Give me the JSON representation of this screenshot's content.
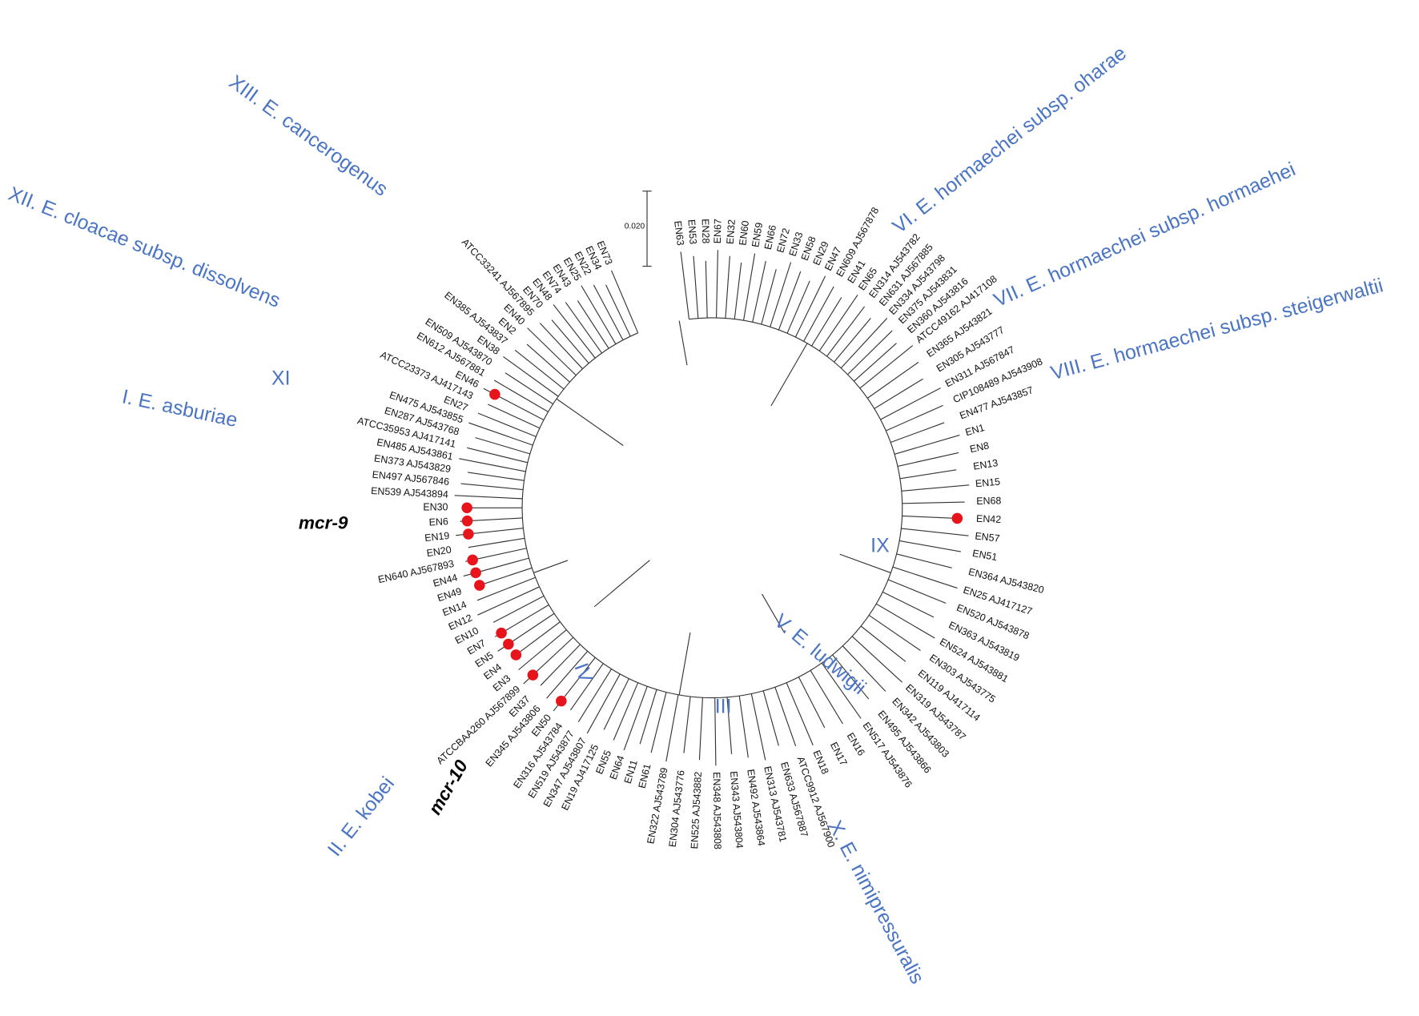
{
  "leaves": [
    "EN63",
    "EN53",
    "EN28",
    "EN67",
    "EN32",
    "EN60",
    "EN59",
    "EN66",
    "EN72",
    "EN33",
    "EN58",
    "EN29",
    "EN47",
    "EN609 AJ567878",
    "EN41",
    "EN65",
    "EN314 AJ543782",
    "EN631 AJ567885",
    "EN334 AJ543798",
    "EN375 AJ543831",
    "EN360 AJ543816",
    "ATCC49162 AJ417108",
    "EN365 AJ543821",
    "EN305 AJ543777",
    "EN311 AJ567847",
    "CIP108489 AJ543908",
    "EN477 AJ543857",
    "EN1",
    "EN8",
    "EN13",
    "EN15",
    "EN68",
    "EN42",
    "EN57",
    "EN51",
    "EN364 AJ543820",
    "EN25 AJ417127",
    "EN520 AJ543878",
    "EN363 AJ543819",
    "EN524 AJ543881",
    "EN303 AJ543775",
    "EN119 AJ417114",
    "EN319 AJ543787",
    "EN342 AJ543803",
    "EN495 AJ543866",
    "EN517 AJ543876",
    "EN16",
    "EN17",
    "EN18",
    "ATCC9912 AJ567900",
    "EN633 AJ567887",
    "EN313 AJ543781",
    "EN492 AJ543864",
    "EN343 AJ543804",
    "EN348 AJ543808",
    "EN525 AJ543882",
    "EN304 AJ543776",
    "EN322 AJ543789",
    "EN61",
    "EN11",
    "EN64",
    "EN55",
    "EN19 AJ417125",
    "EN347 AJ543807",
    "EN519 AJ543877",
    "EN316 AJ543784",
    "EN50",
    "EN345 AJ543806",
    "EN37",
    "ATCCBAA260 AJ567899",
    "EN3",
    "EN4",
    "EN5",
    "EN7",
    "EN10",
    "EN12",
    "EN14",
    "EN49",
    "EN44",
    "EN640 AJ567893",
    "EN20",
    "EN19",
    "EN6",
    "EN30",
    "EN539 AJ543894",
    "EN497 AJ567846",
    "EN373 AJ543829",
    "EN485 AJ543861",
    "ATCC35953 AJ417141",
    "EN287 AJ543768",
    "EN475 AJ543855",
    "EN27",
    "ATCC23373 AJ417143",
    "EN46",
    "EN612 AJ567881",
    "EN509 AJ543870",
    "EN38",
    "EN385 AJ543837",
    "EN2",
    "EN40",
    "ATCC33241 AJ567895",
    "EN70",
    "EN48",
    "EN74",
    "EN43",
    "EN25",
    "EN22",
    "EN34",
    "EN73"
  ],
  "clades": [
    "XIII. E. cancerogenus",
    "XII. E. cloacae subsp. dissolvens",
    "XI",
    "I. E. asburiae",
    "VI. E. hormaechei subsp. oharae",
    "VII. E. hormaechei subsp. hormaehei",
    "VIII. E. hormaechei subsp. steigerwaltii",
    "IX",
    "V. E. ludwigii",
    "III",
    "IV",
    "II. E. kobei",
    "X. E. nimipressuralis"
  ],
  "genes": [
    "mcr-9",
    "mcr-10"
  ],
  "scale_bar": "0.020"
}
